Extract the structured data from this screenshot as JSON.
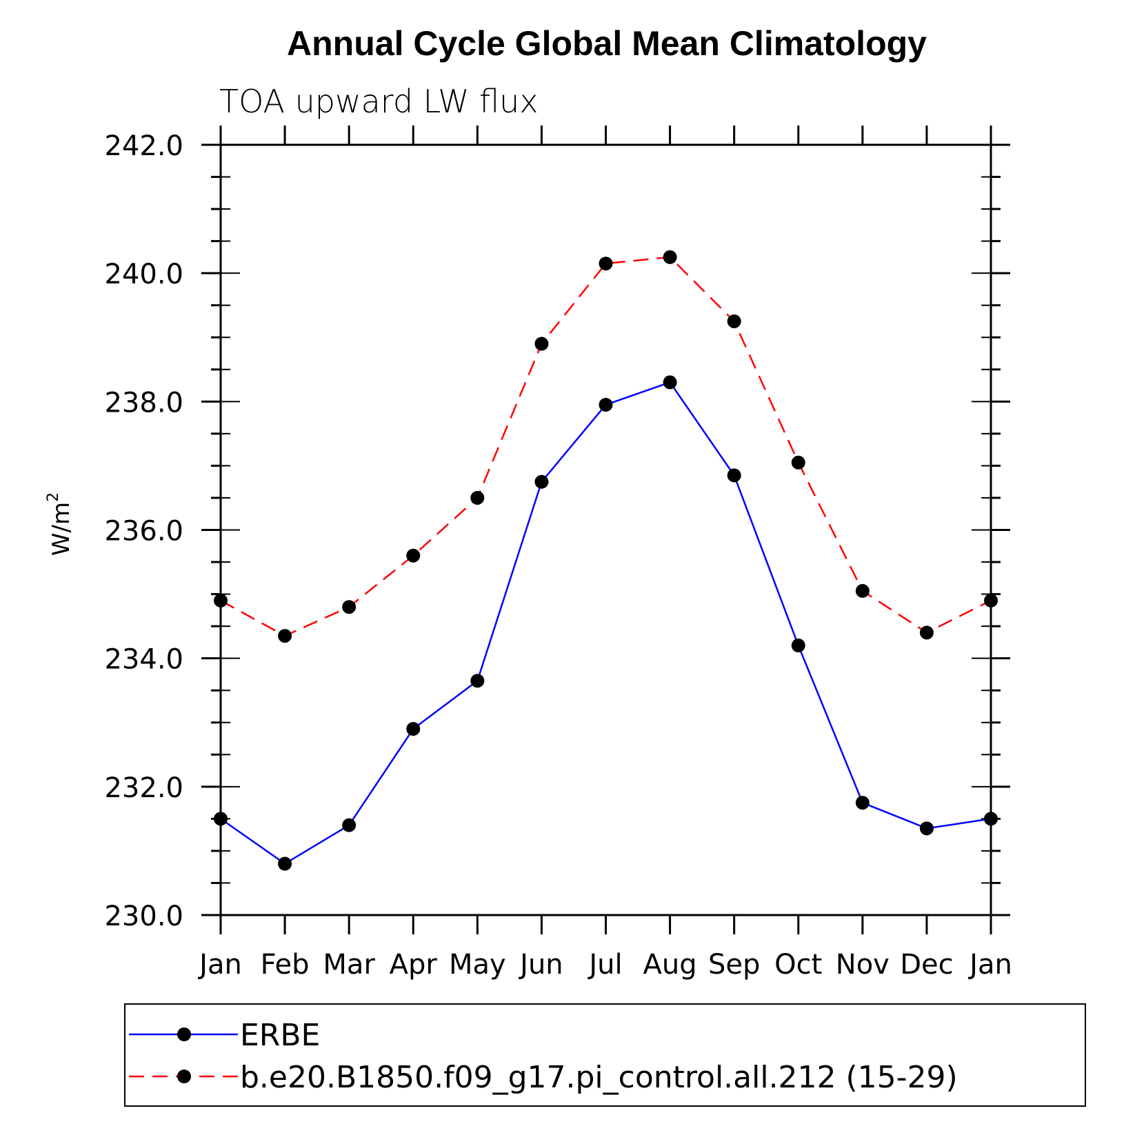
{
  "chart_data": {
    "type": "line",
    "title": "Annual Cycle Global Mean Climatology",
    "subtitle": "TOA upward LW flux",
    "ylabel_base": "W/m",
    "ylabel_sup": "2",
    "xlabel": "",
    "categories": [
      "Jan",
      "Feb",
      "Mar",
      "Apr",
      "May",
      "Jun",
      "Jul",
      "Aug",
      "Sep",
      "Oct",
      "Nov",
      "Dec",
      "Jan"
    ],
    "ylim": [
      230.0,
      242.0
    ],
    "yticks": [
      "230.0",
      "232.0",
      "234.0",
      "236.0",
      "238.0",
      "240.0",
      "242.0"
    ],
    "grid": false,
    "legend_position": "bottom",
    "series": [
      {
        "name": "ERBE",
        "color": "#0000ff",
        "line_style": "solid",
        "marker": "filled-circle",
        "values": [
          231.5,
          230.8,
          231.4,
          232.9,
          233.65,
          236.75,
          237.95,
          238.3,
          236.85,
          234.2,
          231.75,
          231.35,
          231.5
        ]
      },
      {
        "name": "b.e20.B1850.f09_g17.pi_control.all.212 (15-29)",
        "color": "#ff0000",
        "line_style": "dashed",
        "marker": "filled-circle",
        "values": [
          234.9,
          234.35,
          234.8,
          235.6,
          236.5,
          238.9,
          240.15,
          240.25,
          239.25,
          237.05,
          235.05,
          234.4,
          234.9
        ]
      }
    ]
  }
}
